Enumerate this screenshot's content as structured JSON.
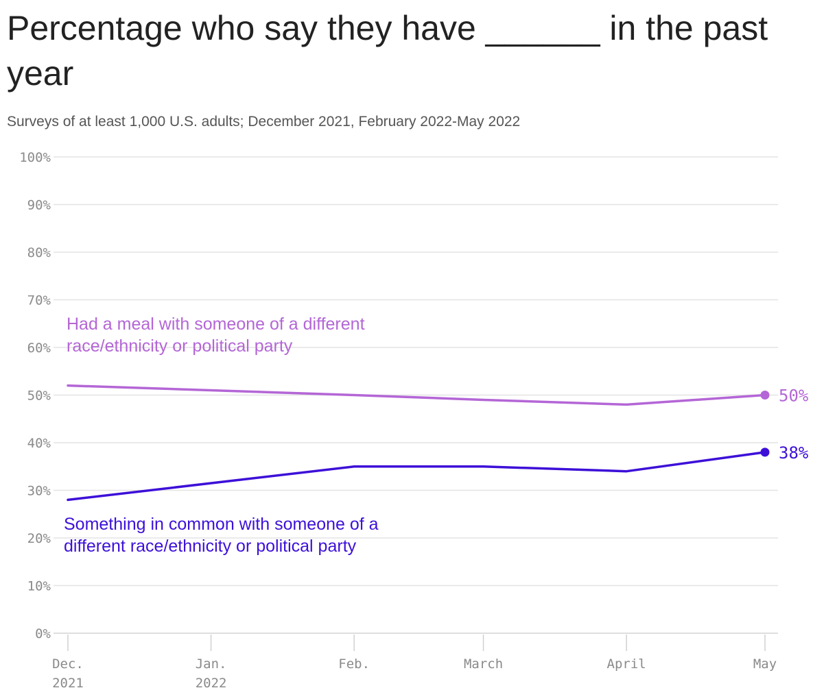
{
  "title": "Percentage who say they have ______ in the past year",
  "subtitle": "Surveys of at least 1,000 U.S. adults; December 2021, February 2022-May 2022",
  "chart_data": {
    "type": "line",
    "title": "Percentage who say they have ______ in the past year",
    "subtitle": "Surveys of at least 1,000 U.S. adults; December 2021, February 2022-May 2022",
    "x_ticks": [
      {
        "date": "2021-12-01",
        "line1": "Dec.",
        "line2": "2021"
      },
      {
        "date": "2022-01-01",
        "line1": "Jan.",
        "line2": "2022"
      },
      {
        "date": "2022-02-01",
        "line1": "Feb.",
        "line2": ""
      },
      {
        "date": "2022-03-01",
        "line1": "March",
        "line2": ""
      },
      {
        "date": "2022-04-01",
        "line1": "April",
        "line2": ""
      },
      {
        "date": "2022-05-01",
        "line1": "May",
        "line2": ""
      }
    ],
    "y_ticks": [
      "0%",
      "10%",
      "20%",
      "30%",
      "40%",
      "50%",
      "60%",
      "70%",
      "80%",
      "90%",
      "100%"
    ],
    "ylim": [
      0,
      100
    ],
    "grid": true,
    "series": [
      {
        "name": "Had a meal with someone of a different race/ethnicity or political party",
        "label_lines": [
          "Had a meal with someone of a different",
          "race/ethnicity or political party"
        ],
        "color": "#b466d6",
        "x": [
          "2021-12-01",
          "2022-02-01",
          "2022-03-01",
          "2022-04-01",
          "2022-05-01"
        ],
        "values": [
          52,
          50,
          49,
          48,
          50
        ],
        "end_label": "50%"
      },
      {
        "name": "Something in common with someone of a different race/ethnicity or political party",
        "label_lines": [
          "Something in common with someone of a",
          "different race/ethnicity or political party"
        ],
        "color": "#3d10d8",
        "x": [
          "2021-12-01",
          "2022-02-01",
          "2022-03-01",
          "2022-04-01",
          "2022-05-01"
        ],
        "values": [
          28,
          35,
          35,
          34,
          38
        ],
        "end_label": "38%"
      }
    ]
  }
}
